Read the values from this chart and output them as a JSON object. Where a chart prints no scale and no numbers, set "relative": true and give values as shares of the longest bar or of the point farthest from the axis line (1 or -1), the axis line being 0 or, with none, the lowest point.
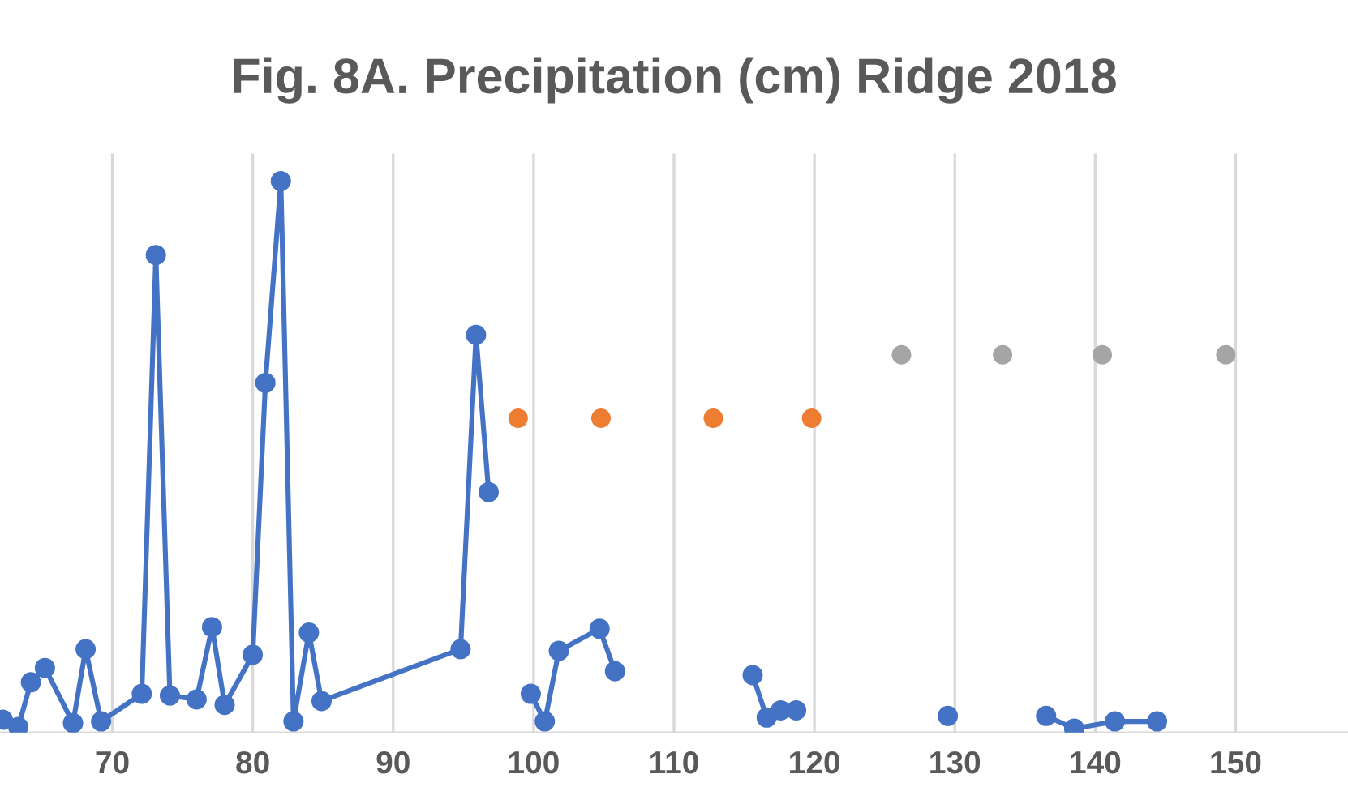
{
  "chart_data": {
    "type": "line",
    "title": "Fig. 8A. Precipitation (cm) Ridge 2018",
    "relative": true,
    "series": [
      {
        "color": "#4472c4",
        "x": [
          62.2,
          63.3,
          64.2,
          65.2,
          67.2,
          68.1,
          69.2,
          72.1,
          73.1,
          74.1,
          76.0,
          77.1,
          78.0,
          80.0,
          80.9,
          82.0,
          82.9,
          84.0,
          84.9,
          94.8,
          95.9,
          96.8,
          98.3,
          99.8,
          100.8,
          101.8,
          104.7,
          105.8,
          110.7,
          115.6,
          116.6,
          117.6,
          118.7,
          124.1,
          129.5,
          133.0,
          136.5,
          138.5,
          141.4,
          144.4
        ],
        "values": [
          0.023,
          0.01,
          0.091,
          0.117,
          0.017,
          0.151,
          0.02,
          0.07,
          0.866,
          0.067,
          0.06,
          0.191,
          0.05,
          0.141,
          0.634,
          1,
          0.02,
          0.181,
          0.057,
          0.151,
          0.721,
          0.436,
          null,
          0.07,
          0.02,
          0.148,
          0.188,
          0.111,
          null,
          0.104,
          0.027,
          0.04,
          0.04,
          null,
          0.03,
          null,
          0.03,
          0.007,
          0.02,
          0.02
        ]
      },
      {
        "type": "scatter",
        "color": "#ed7d31",
        "x": [
          98.9,
          104.8,
          112.8,
          119.8
        ],
        "values": [
          0.57,
          0.57,
          0.57,
          0.57
        ]
      },
      {
        "type": "scatter",
        "color": "#a5a5a5",
        "x": [
          126.2,
          133.4,
          140.5,
          149.3
        ],
        "values": [
          0.685,
          0.685,
          0.685,
          0.685
        ]
      }
    ],
    "xlim": [
      62,
      158
    ],
    "xticks": [
      70,
      80,
      90,
      100,
      110,
      120,
      130,
      140,
      150
    ],
    "grid": "x",
    "marker": "circle"
  }
}
